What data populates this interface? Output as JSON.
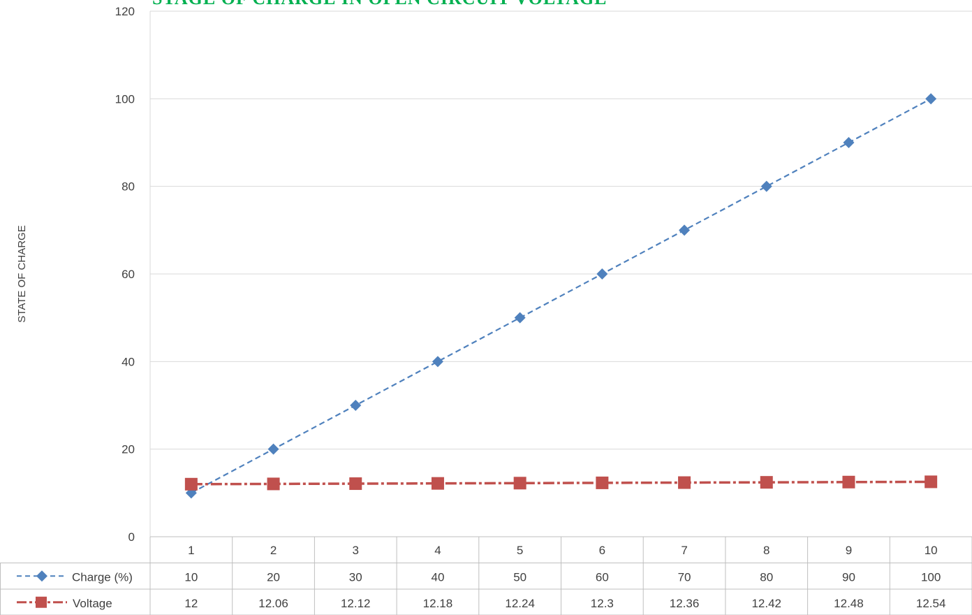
{
  "chart_data": {
    "type": "line",
    "title": "STAGE OF CHARGE IN OPEN CIRCUIT VOLTAGE",
    "ylabel": "STATE OF CHARGE",
    "xlabel": "",
    "categories": [
      "1",
      "2",
      "3",
      "4",
      "5",
      "6",
      "7",
      "8",
      "9",
      "10"
    ],
    "ylim": [
      0,
      120
    ],
    "yticks": [
      0,
      20,
      40,
      60,
      80,
      100,
      120
    ],
    "grid": "horizontal",
    "legend": "data-table-below",
    "series": [
      {
        "name": "Charge (%)",
        "color": "#4f81bd",
        "marker": "diamond",
        "line": "dashed",
        "values": [
          10,
          20,
          30,
          40,
          50,
          60,
          70,
          80,
          90,
          100
        ],
        "labels": [
          "10",
          "20",
          "30",
          "40",
          "50",
          "60",
          "70",
          "80",
          "90",
          "100"
        ]
      },
      {
        "name": "Voltage",
        "color": "#c0504d",
        "marker": "square",
        "line": "dash-dot",
        "values": [
          12,
          12.06,
          12.12,
          12.18,
          12.24,
          12.3,
          12.36,
          12.42,
          12.48,
          12.54
        ],
        "labels": [
          "12",
          "12.06",
          "12.12",
          "12.18",
          "12.24",
          "12.3",
          "12.36",
          "12.42",
          "12.48",
          "12.54"
        ]
      }
    ]
  }
}
